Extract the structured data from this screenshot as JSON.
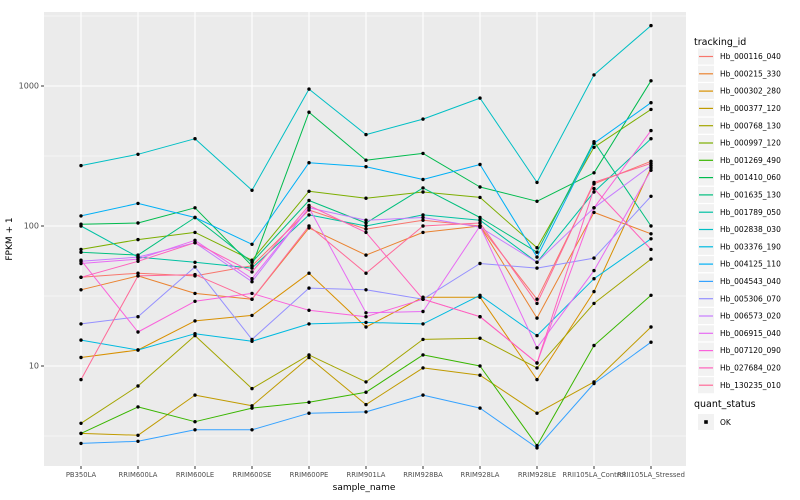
{
  "figure": {
    "y_axis_title": "FPKM + 1",
    "x_axis_title": "sample_name",
    "legend_title": "tracking_id",
    "quant_legend_title": "quant_status",
    "quant_status_label": "OK"
  },
  "colors": {
    "panel_bg": "#EBEBEB",
    "grid": "#FFFFFF",
    "axis_text": "#4D4D4D",
    "tick_mark": "#333333",
    "title_text": "#000000",
    "point": "#000000",
    "legend_key_bg": "#F2F2F2"
  },
  "chart_data": {
    "type": "line",
    "x_categories": [
      "PB350LA",
      "RRIM600LA",
      "RRIM600LE",
      "RRIM600SE",
      "RRIM600PE",
      "RRIM901LA",
      "RRIM928BA",
      "RRIM928LA",
      "RRIM928LE",
      "RRII105LA_Control",
      "RRII105LA_Stressed"
    ],
    "xlabel": "sample_name",
    "ylabel": "FPKM + 1",
    "y_scale": "log10",
    "y_ticks": [
      10,
      100,
      1000
    ],
    "ylim": [
      2.3,
      3500
    ],
    "grid": "major-and-minor-white-on-grey",
    "legend_position": "right",
    "marker": "black point on every value (quant_status OK)",
    "series": [
      {
        "name": "Hb_000116_040",
        "color": "#F8766D",
        "values": [
          43,
          46,
          44,
          52,
          130,
          95,
          110,
          100,
          30,
          200,
          290
        ]
      },
      {
        "name": "Hb_000215_330",
        "color": "#EA8331",
        "values": [
          35,
          44,
          33,
          30,
          97,
          62,
          90,
          100,
          22,
          125,
          88
        ]
      },
      {
        "name": "Hb_000302_280",
        "color": "#D89000",
        "values": [
          11.5,
          13,
          21,
          23,
          46,
          19,
          31,
          31,
          8,
          34,
          260
        ]
      },
      {
        "name": "Hb_000377_120",
        "color": "#C09B00",
        "values": [
          3.3,
          3.2,
          6.2,
          5.2,
          11.5,
          5.3,
          9.7,
          8.6,
          4.6,
          7.7,
          19
        ]
      },
      {
        "name": "Hb_000768_130",
        "color": "#A3A500",
        "values": [
          3.9,
          7.2,
          16.5,
          6.9,
          12,
          7.7,
          15.5,
          15.8,
          9.7,
          28,
          58
        ]
      },
      {
        "name": "Hb_000997_120",
        "color": "#7CAE00",
        "values": [
          68,
          80,
          90,
          57,
          177,
          158,
          175,
          160,
          70,
          365,
          680
        ]
      },
      {
        "name": "Hb_001269_490",
        "color": "#39B600",
        "values": [
          3.3,
          5.1,
          4.0,
          5.0,
          5.5,
          6.5,
          12,
          10,
          2.7,
          14,
          32
        ]
      },
      {
        "name": "Hb_001410_060",
        "color": "#00BB4E",
        "values": [
          103,
          105,
          135,
          52,
          650,
          295,
          330,
          190,
          150,
          240,
          1090
        ]
      },
      {
        "name": "Hb_001635_130",
        "color": "#00BF7D",
        "values": [
          65,
          62,
          115,
          55,
          152,
          105,
          187,
          115,
          65,
          400,
          100
        ]
      },
      {
        "name": "Hb_001789_050",
        "color": "#00C1A3",
        "values": [
          100,
          60,
          55,
          50,
          120,
          100,
          120,
          110,
          55,
          175,
          420
        ]
      },
      {
        "name": "Hb_002838_030",
        "color": "#00BFC4",
        "values": [
          270,
          325,
          420,
          180,
          950,
          450,
          580,
          820,
          205,
          1200,
          2700
        ]
      },
      {
        "name": "Hb_003376_190",
        "color": "#00BAE0",
        "values": [
          15.3,
          13,
          17,
          15,
          20,
          20.5,
          20,
          32,
          16.5,
          42,
          81
        ]
      },
      {
        "name": "Hb_004125_110",
        "color": "#00B0F6",
        "values": [
          118,
          145,
          115,
          74,
          283,
          265,
          215,
          275,
          60,
          390,
          760
        ]
      },
      {
        "name": "Hb_004543_040",
        "color": "#35A2FF",
        "values": [
          2.8,
          2.9,
          3.5,
          3.5,
          4.6,
          4.7,
          6.2,
          5.0,
          2.6,
          7.5,
          14.8
        ]
      },
      {
        "name": "Hb_005306_070",
        "color": "#9590FF",
        "values": [
          20,
          22.5,
          51,
          15.5,
          36,
          35,
          30,
          54,
          50,
          59,
          163
        ]
      },
      {
        "name": "Hb_006573_020",
        "color": "#C77CFF",
        "values": [
          56,
          60,
          76,
          40,
          135,
          110,
          115,
          98,
          55,
          135,
          270
        ]
      },
      {
        "name": "Hb_006915_040",
        "color": "#E76BF3",
        "values": [
          54,
          58,
          79,
          42,
          135,
          24,
          24.5,
          100,
          13.5,
          48,
          250
        ]
      },
      {
        "name": "Hb_007120_090",
        "color": "#FA62DB",
        "values": [
          57,
          17.5,
          29,
          33,
          25,
          22.5,
          30,
          22.5,
          10.5,
          135,
          480
        ]
      },
      {
        "name": "Hb_027684_020",
        "color": "#FF62BC",
        "values": [
          43,
          56,
          76,
          47,
          140,
          90,
          30,
          22.5,
          10.5,
          185,
          68
        ]
      },
      {
        "name": "Hb_130235_010",
        "color": "#FF6A98",
        "values": [
          8,
          44,
          45,
          30,
          100,
          46,
          100,
          105,
          28,
          205,
          280
        ]
      }
    ]
  }
}
